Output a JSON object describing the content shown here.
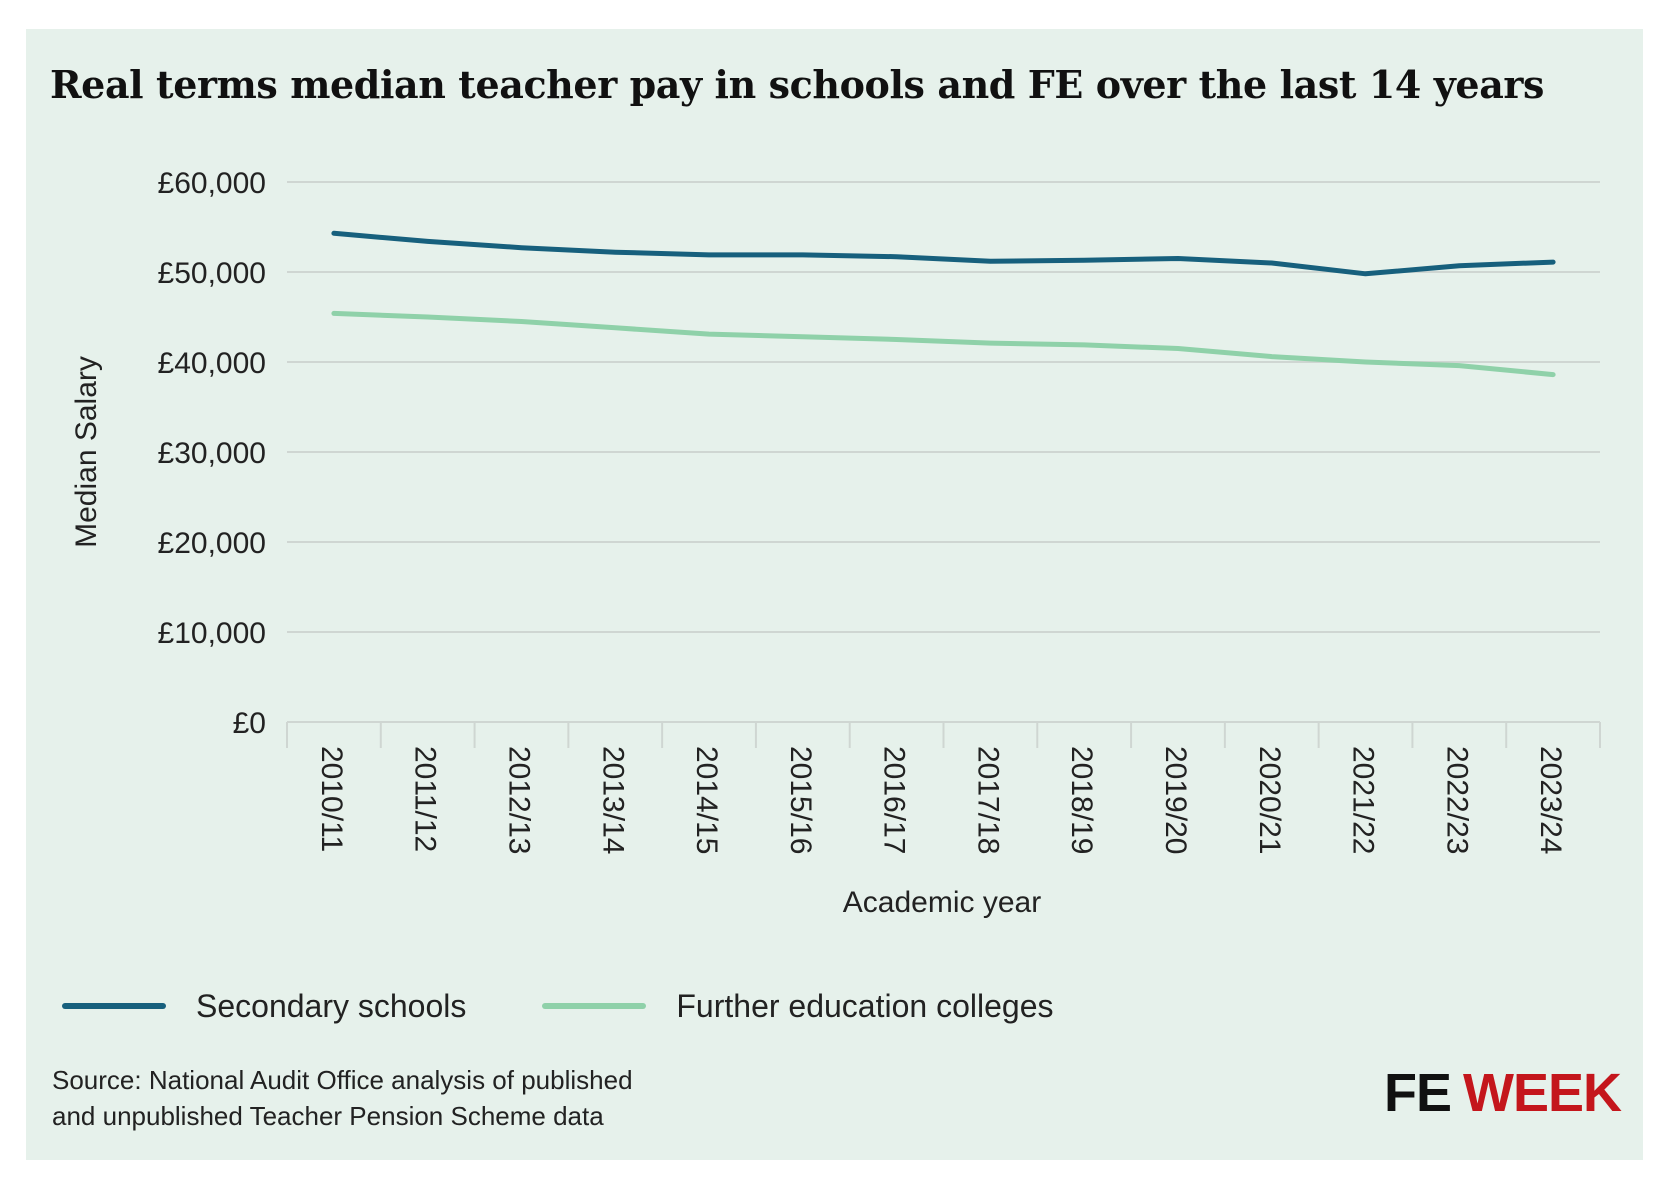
{
  "chart_data": {
    "type": "line",
    "title": "Real terms median teacher pay in schools and FE over the last 14 years",
    "xlabel": "Academic year",
    "ylabel": "Median  Salary",
    "ylim": [
      0,
      60000
    ],
    "yticks": [
      0,
      10000,
      20000,
      30000,
      40000,
      50000,
      60000
    ],
    "ytick_labels": [
      "£0",
      "£10,000",
      "£20,000",
      "£30,000",
      "£40,000",
      "£50,000",
      "£60,000"
    ],
    "categories": [
      "2010/11",
      "2011/12",
      "2012/13",
      "2013/14",
      "2014/15",
      "2015/16",
      "2016/17",
      "2017/18",
      "2018/19",
      "2019/20",
      "2020/21",
      "2021/22",
      "2022/23",
      "2023/24"
    ],
    "grid": "horizontal",
    "legend_position": "bottom-left",
    "series": [
      {
        "name": "Secondary schools",
        "color": "#17607d",
        "values": [
          54300,
          53400,
          52700,
          52200,
          51900,
          51900,
          51700,
          51200,
          51300,
          51500,
          51000,
          49800,
          50700,
          51100
        ]
      },
      {
        "name": "Further education colleges",
        "color": "#8fd1a9",
        "values": [
          45400,
          45000,
          44500,
          43800,
          43100,
          42800,
          42500,
          42100,
          41900,
          41500,
          40600,
          40000,
          39600,
          38600
        ]
      }
    ]
  },
  "footer": {
    "source_line1": "Source: National Audit Office analysis of published",
    "source_line2": "and unpublished Teacher Pension Scheme data"
  },
  "logo": {
    "fe": "FE",
    "week": "WEEK",
    "colors": {
      "fe": "#111111",
      "week": "#c4161c"
    }
  },
  "colors": {
    "background": "#e6f1eb",
    "gridline": "#cfd6d2"
  }
}
